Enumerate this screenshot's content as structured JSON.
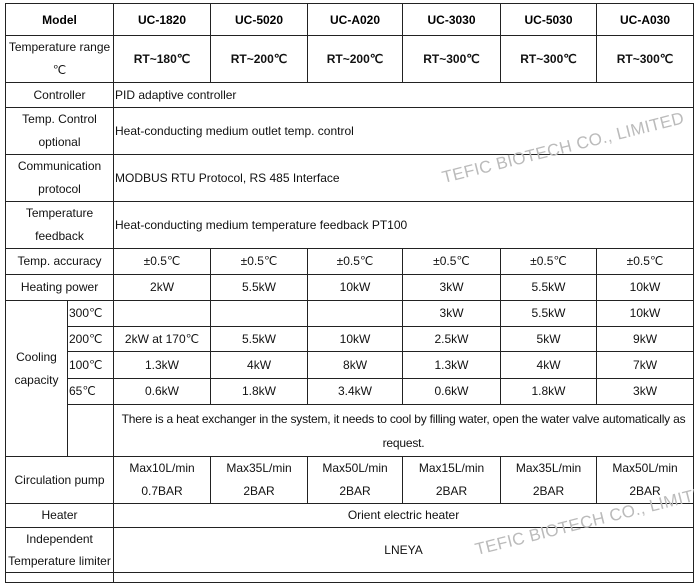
{
  "header": {
    "label": "Model",
    "models": [
      "UC-1820",
      "UC-5020",
      "UC-A020",
      "UC-3030",
      "UC-5030",
      "UC-A030"
    ]
  },
  "temp_range": {
    "label": "Temperature range ℃",
    "values": [
      "RT~180℃",
      "RT~200℃",
      "RT~200℃",
      "RT~300℃",
      "RT~300℃",
      "RT~300℃"
    ]
  },
  "controller": {
    "label": "Controller",
    "value": "PID adaptive controller"
  },
  "temp_control": {
    "label": "Temp. Control optional",
    "value": "Heat-conducting medium outlet temp. control"
  },
  "communication": {
    "label": "Communication protocol",
    "value": "MODBUS RTU Protocol, RS 485 Interface"
  },
  "feedback": {
    "label": "Temperature feedback",
    "value": "Heat-conducting medium temperature feedback PT100"
  },
  "accuracy": {
    "label": "Temp. accuracy",
    "values": [
      "±0.5℃",
      "±0.5℃",
      "±0.5℃",
      "±0.5℃",
      "±0.5℃",
      "±0.5℃"
    ]
  },
  "heating": {
    "label": "Heating power",
    "values": [
      "2kW",
      "5.5kW",
      "10kW",
      "3kW",
      "5.5kW",
      "10kW"
    ]
  },
  "cooling": {
    "label": "Cooling capacity",
    "rows": [
      {
        "temp": "300℃",
        "values": [
          "",
          "",
          "",
          "3kW",
          "5.5kW",
          "10kW"
        ]
      },
      {
        "temp": "200℃",
        "values": [
          "2kW at 170℃",
          "5.5kW",
          "10kW",
          "2.5kW",
          "5kW",
          "9kW"
        ]
      },
      {
        "temp": "100℃",
        "values": [
          "1.3kW",
          "4kW",
          "8kW",
          "1.3kW",
          "4kW",
          "7kW"
        ]
      },
      {
        "temp": "65℃",
        "values": [
          "0.6kW",
          "1.8kW",
          "3.4kW",
          "0.6kW",
          "1.8kW",
          "3kW"
        ]
      }
    ],
    "note": "There is a heat exchanger in the system, it needs to cool by filling water, open the water valve automatically as request."
  },
  "pump": {
    "label": "Circulation pump",
    "flow": [
      "Max10L/min",
      "Max35L/min",
      "Max50L/min",
      "Max15L/min",
      "Max35L/min",
      "Max50L/min"
    ],
    "pressure": [
      "0.7BAR",
      "2BAR",
      "2BAR",
      "2BAR",
      "2BAR",
      "2BAR"
    ]
  },
  "heater": {
    "label": "Heater",
    "value": "Orient electric heater"
  },
  "limiter": {
    "label": "Independent Temperature limiter",
    "value": "LNEYA"
  },
  "watermark": "TEFIC BIOTECH CO., LIMITED"
}
